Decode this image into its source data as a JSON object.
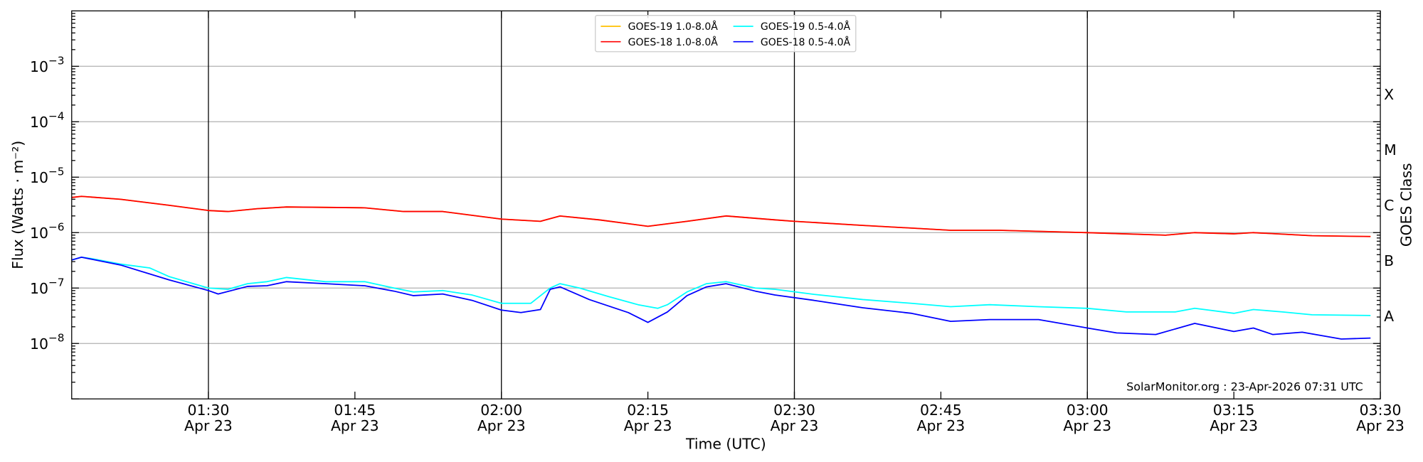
{
  "chart_data": {
    "type": "line",
    "title": "",
    "xlabel": "Time (UTC)",
    "ylabel": "Flux (Watts · m⁻²)",
    "ylabel_right": "GOES Class",
    "yscale": "log",
    "ylim": [
      1e-09,
      0.01
    ],
    "xlim": [
      "01:16",
      "03:30"
    ],
    "date_label": "Apr 23",
    "x_ticks": [
      "01:30",
      "01:45",
      "02:00",
      "02:15",
      "02:30",
      "02:45",
      "03:00",
      "03:15",
      "03:30"
    ],
    "x_vlines": [
      "01:30",
      "02:00",
      "02:30",
      "03:00"
    ],
    "y_ticks": [
      {
        "base": "10",
        "exp": "−3",
        "value": 0.001
      },
      {
        "base": "10",
        "exp": "−4",
        "value": 0.0001
      },
      {
        "base": "10",
        "exp": "−5",
        "value": 1e-05
      },
      {
        "base": "10",
        "exp": "−6",
        "value": 1e-06
      },
      {
        "base": "10",
        "exp": "−7",
        "value": 1e-07
      },
      {
        "base": "10",
        "exp": "−8",
        "value": 1e-08
      }
    ],
    "goes_classes": [
      {
        "label": "X",
        "value": 0.000316
      },
      {
        "label": "M",
        "value": 3.16e-05
      },
      {
        "label": "C",
        "value": 3.16e-06
      },
      {
        "label": "B",
        "value": 3.16e-07
      },
      {
        "label": "A",
        "value": 3.16e-08
      }
    ],
    "grid": true,
    "legend_placement": "top-center",
    "watermark": "SolarMonitor.org : 23-Apr-2026 07:31 UTC",
    "series": [
      {
        "name": "GOES-19 1.0-8.0Å",
        "color": "#ffc000",
        "x": [
          "01:16",
          "01:17",
          "01:21",
          "01:26",
          "01:30",
          "01:32",
          "01:35",
          "01:38",
          "01:46",
          "01:50",
          "01:54",
          "02:00",
          "02:04",
          "02:06",
          "02:10",
          "02:15",
          "02:19",
          "02:23",
          "02:28",
          "02:30",
          "02:37",
          "02:46",
          "02:51",
          "03:00",
          "03:08",
          "03:11",
          "03:15",
          "03:17",
          "03:23",
          "03:29"
        ],
        "y": [
          4.3e-06,
          4.5e-06,
          4e-06,
          3.1e-06,
          2.5e-06,
          2.4e-06,
          2.7e-06,
          2.9e-06,
          2.8e-06,
          2.4e-06,
          2.4e-06,
          1.75e-06,
          1.6e-06,
          2e-06,
          1.7e-06,
          1.3e-06,
          1.6e-06,
          2e-06,
          1.7e-06,
          1.6e-06,
          1.35e-06,
          1.1e-06,
          1.1e-06,
          1e-06,
          9e-07,
          1e-06,
          9.5e-07,
          1e-06,
          8.8e-07,
          8.5e-07
        ]
      },
      {
        "name": "GOES-18 1.0-8.0Å",
        "color": "#ff0000",
        "x": [
          "01:16",
          "01:17",
          "01:21",
          "01:26",
          "01:30",
          "01:32",
          "01:35",
          "01:38",
          "01:46",
          "01:50",
          "01:54",
          "02:00",
          "02:04",
          "02:06",
          "02:10",
          "02:15",
          "02:19",
          "02:23",
          "02:28",
          "02:30",
          "02:37",
          "02:46",
          "02:51",
          "03:00",
          "03:08",
          "03:11",
          "03:15",
          "03:17",
          "03:23",
          "03:29"
        ],
        "y": [
          4.3e-06,
          4.5e-06,
          4e-06,
          3.1e-06,
          2.5e-06,
          2.4e-06,
          2.7e-06,
          2.9e-06,
          2.8e-06,
          2.4e-06,
          2.4e-06,
          1.75e-06,
          1.6e-06,
          2e-06,
          1.7e-06,
          1.3e-06,
          1.6e-06,
          2e-06,
          1.7e-06,
          1.6e-06,
          1.35e-06,
          1.1e-06,
          1.1e-06,
          1e-06,
          9e-07,
          1e-06,
          9.5e-07,
          1e-06,
          8.8e-07,
          8.5e-07
        ]
      },
      {
        "name": "GOES-19 0.5-4.0Å",
        "color": "#00ffff",
        "x": [
          "01:16",
          "01:17",
          "01:18",
          "01:21",
          "01:24",
          "01:26",
          "01:30",
          "01:32",
          "01:34",
          "01:36",
          "01:38",
          "01:42",
          "01:46",
          "01:49",
          "01:51",
          "01:54",
          "01:57",
          "02:00",
          "02:03",
          "02:05",
          "02:06",
          "02:08",
          "02:11",
          "02:14",
          "02:16",
          "02:17",
          "02:19",
          "02:21",
          "02:23",
          "02:26",
          "02:28",
          "02:32",
          "02:37",
          "02:42",
          "02:46",
          "02:50",
          "02:55",
          "03:00",
          "03:04",
          "03:09",
          "03:11",
          "03:15",
          "03:17",
          "03:20",
          "03:23",
          "03:29"
        ],
        "y": [
          3.2e-07,
          3.6e-07,
          3.4e-07,
          2.7e-07,
          2.3e-07,
          1.6e-07,
          1e-07,
          9.5e-08,
          1.2e-07,
          1.3e-07,
          1.55e-07,
          1.3e-07,
          1.3e-07,
          1e-07,
          8.5e-08,
          9e-08,
          7.5e-08,
          5.3e-08,
          5.3e-08,
          1e-07,
          1.2e-07,
          1e-07,
          7e-08,
          5e-08,
          4.3e-08,
          5e-08,
          8.5e-08,
          1.2e-07,
          1.3e-07,
          1e-07,
          9.5e-08,
          7.7e-08,
          6.2e-08,
          5.3e-08,
          4.6e-08,
          5e-08,
          4.6e-08,
          4.3e-08,
          3.7e-08,
          3.7e-08,
          4.3e-08,
          3.5e-08,
          4.1e-08,
          3.7e-08,
          3.3e-08,
          3.2e-08
        ]
      },
      {
        "name": "GOES-18 0.5-4.0Å",
        "color": "#0000ff",
        "x": [
          "01:16",
          "01:17",
          "01:21",
          "01:26",
          "01:30",
          "01:31",
          "01:34",
          "01:36",
          "01:38",
          "01:42",
          "01:46",
          "01:49",
          "01:51",
          "01:54",
          "01:57",
          "02:00",
          "02:02",
          "02:04",
          "02:05",
          "02:06",
          "02:09",
          "02:13",
          "02:15",
          "02:17",
          "02:19",
          "02:21",
          "02:23",
          "02:26",
          "02:28",
          "02:32",
          "02:37",
          "02:42",
          "02:46",
          "02:50",
          "02:55",
          "03:00",
          "03:03",
          "03:07",
          "03:11",
          "03:15",
          "03:17",
          "03:19",
          "03:22",
          "03:26",
          "03:29"
        ],
        "y": [
          3.2e-07,
          3.6e-07,
          2.6e-07,
          1.4e-07,
          9e-08,
          7.8e-08,
          1.07e-07,
          1.1e-07,
          1.3e-07,
          1.2e-07,
          1.1e-07,
          8.8e-08,
          7.3e-08,
          7.8e-08,
          6e-08,
          4e-08,
          3.6e-08,
          4.1e-08,
          9.5e-08,
          1.05e-07,
          6.2e-08,
          3.6e-08,
          2.4e-08,
          3.7e-08,
          7.3e-08,
          1.05e-07,
          1.2e-07,
          8.8e-08,
          7.5e-08,
          6e-08,
          4.4e-08,
          3.5e-08,
          2.5e-08,
          2.7e-08,
          2.7e-08,
          1.9e-08,
          1.55e-08,
          1.45e-08,
          2.3e-08,
          1.65e-08,
          1.9e-08,
          1.45e-08,
          1.6e-08,
          1.2e-08,
          1.25e-08
        ]
      }
    ]
  }
}
